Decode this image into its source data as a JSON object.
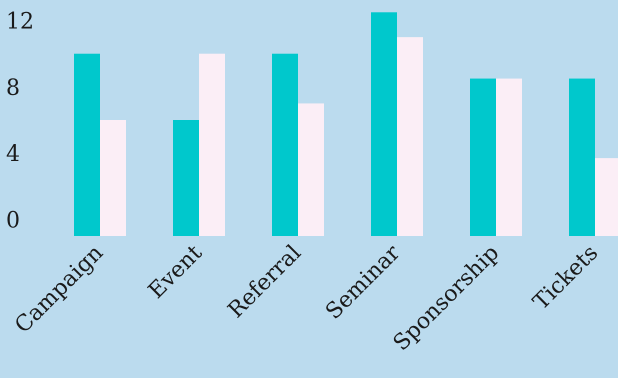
{
  "background": "#bbdbee",
  "chart_data": {
    "type": "bar",
    "categories": [
      "Campaign",
      "Event",
      "Referral",
      "Seminar",
      "Sponsorship",
      "Tickets"
    ],
    "series": [
      {
        "values": [
          10,
          6,
          10,
          12.5,
          8.5,
          8.5
        ],
        "color": "#00c8cc"
      },
      {
        "values": [
          6,
          10,
          7,
          11,
          8.5,
          3.7
        ],
        "color": "#fbeef6"
      }
    ],
    "yticks": [
      0,
      4,
      8,
      12
    ],
    "ylim": [
      -1,
      13
    ],
    "title": "",
    "xlabel": "",
    "ylabel": "",
    "grid": false,
    "legend": "none"
  }
}
